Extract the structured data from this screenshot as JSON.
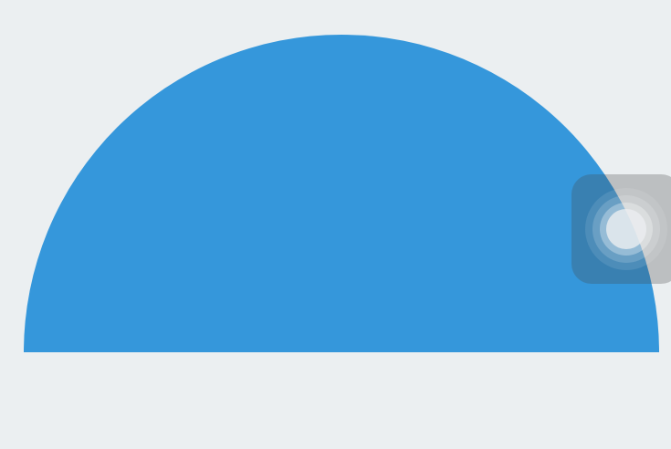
{
  "colors": {
    "background": "#ebeff1",
    "shape_fill": "#3597db",
    "assistive_touch": "#464646"
  },
  "shape": {
    "type": "semicircle"
  },
  "overlay": {
    "icon": "assistive-touch-icon"
  }
}
